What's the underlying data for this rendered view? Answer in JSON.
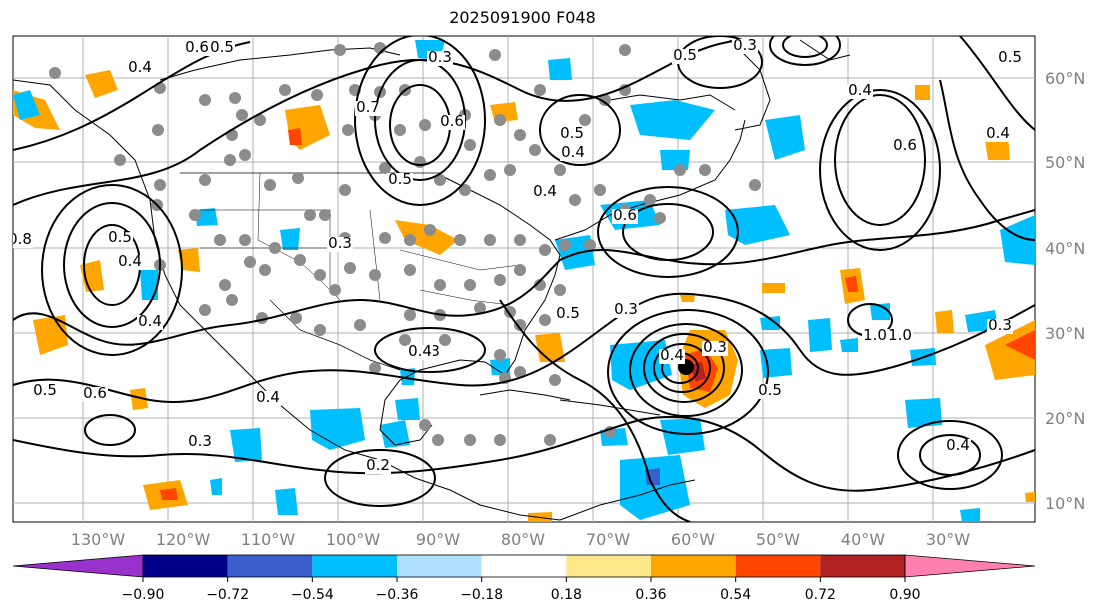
{
  "title": "2025091900 F048",
  "map": {
    "lon_labels": [
      "130°W",
      "120°W",
      "110°W",
      "100°W",
      "90°W",
      "80°W",
      "70°W",
      "60°W",
      "50°W",
      "40°W",
      "30°W"
    ],
    "lat_labels": [
      "60°N",
      "50°N",
      "40°N",
      "30°N",
      "20°N",
      "10°N"
    ],
    "contour_labels": [
      "0.6",
      "0.5",
      "0.4",
      "0.3",
      "0.7",
      "0.6",
      "0.5",
      "0.4",
      "0.3",
      "0.5",
      "0.4",
      "0.3",
      "0.2",
      "0.4",
      "0.3",
      "0.4",
      "0.5",
      "0.6",
      "0.4",
      "0.3",
      "0.5",
      "0.4",
      "0.3",
      "0.5",
      "1.0",
      "1.0",
      "0.4",
      "0.6",
      "0.5",
      "0.4",
      "0.5",
      "0.3",
      "0.4",
      "0.5",
      "0.8",
      "0.6",
      "0.4",
      "0.3"
    ],
    "station_marker_color": "#8c8c8c",
    "hurricane_center_color": "#000000"
  },
  "colorbar": {
    "colors": [
      "#9932cc",
      "#00008b",
      "#3a5fcd",
      "#00bfff",
      "#b0e0ff",
      "#ffffff",
      "#ffe88a",
      "#ffa500",
      "#ff4500",
      "#b22222",
      "#ff7fb0"
    ],
    "tick_labels": [
      "−0.90",
      "−0.72",
      "−0.54",
      "−0.36",
      "−0.18",
      "0.18",
      "0.36",
      "0.54",
      "0.72",
      "0.90"
    ]
  }
}
